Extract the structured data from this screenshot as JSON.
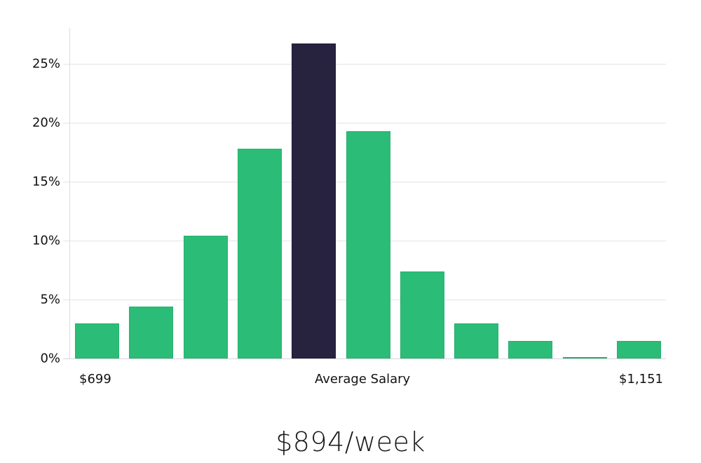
{
  "chart_data": {
    "type": "bar",
    "title": "",
    "xlabel": "Average Salary",
    "ylabel": "",
    "categories": [
      "bin1",
      "bin2",
      "bin3",
      "bin4",
      "bin5",
      "bin6",
      "bin7",
      "bin8",
      "bin9",
      "bin10",
      "bin11"
    ],
    "values": [
      3.0,
      4.4,
      10.4,
      17.8,
      26.7,
      19.3,
      7.4,
      3.0,
      1.5,
      0.1,
      1.5
    ],
    "highlight_index": 4,
    "colors": {
      "bar": "#2bbd77",
      "highlight": "#27233f",
      "grid": "#e3e3e6"
    },
    "yticks": [
      "0%",
      "5%",
      "10%",
      "15%",
      "20%",
      "25%"
    ],
    "ytick_values": [
      0,
      5,
      10,
      15,
      20,
      25
    ],
    "ylim": [
      0,
      28
    ],
    "grid": true,
    "legend": "none",
    "x_range_labels": {
      "min": "$699",
      "center": "Average Salary",
      "max": "$1,151"
    }
  },
  "headline": "$894/week"
}
